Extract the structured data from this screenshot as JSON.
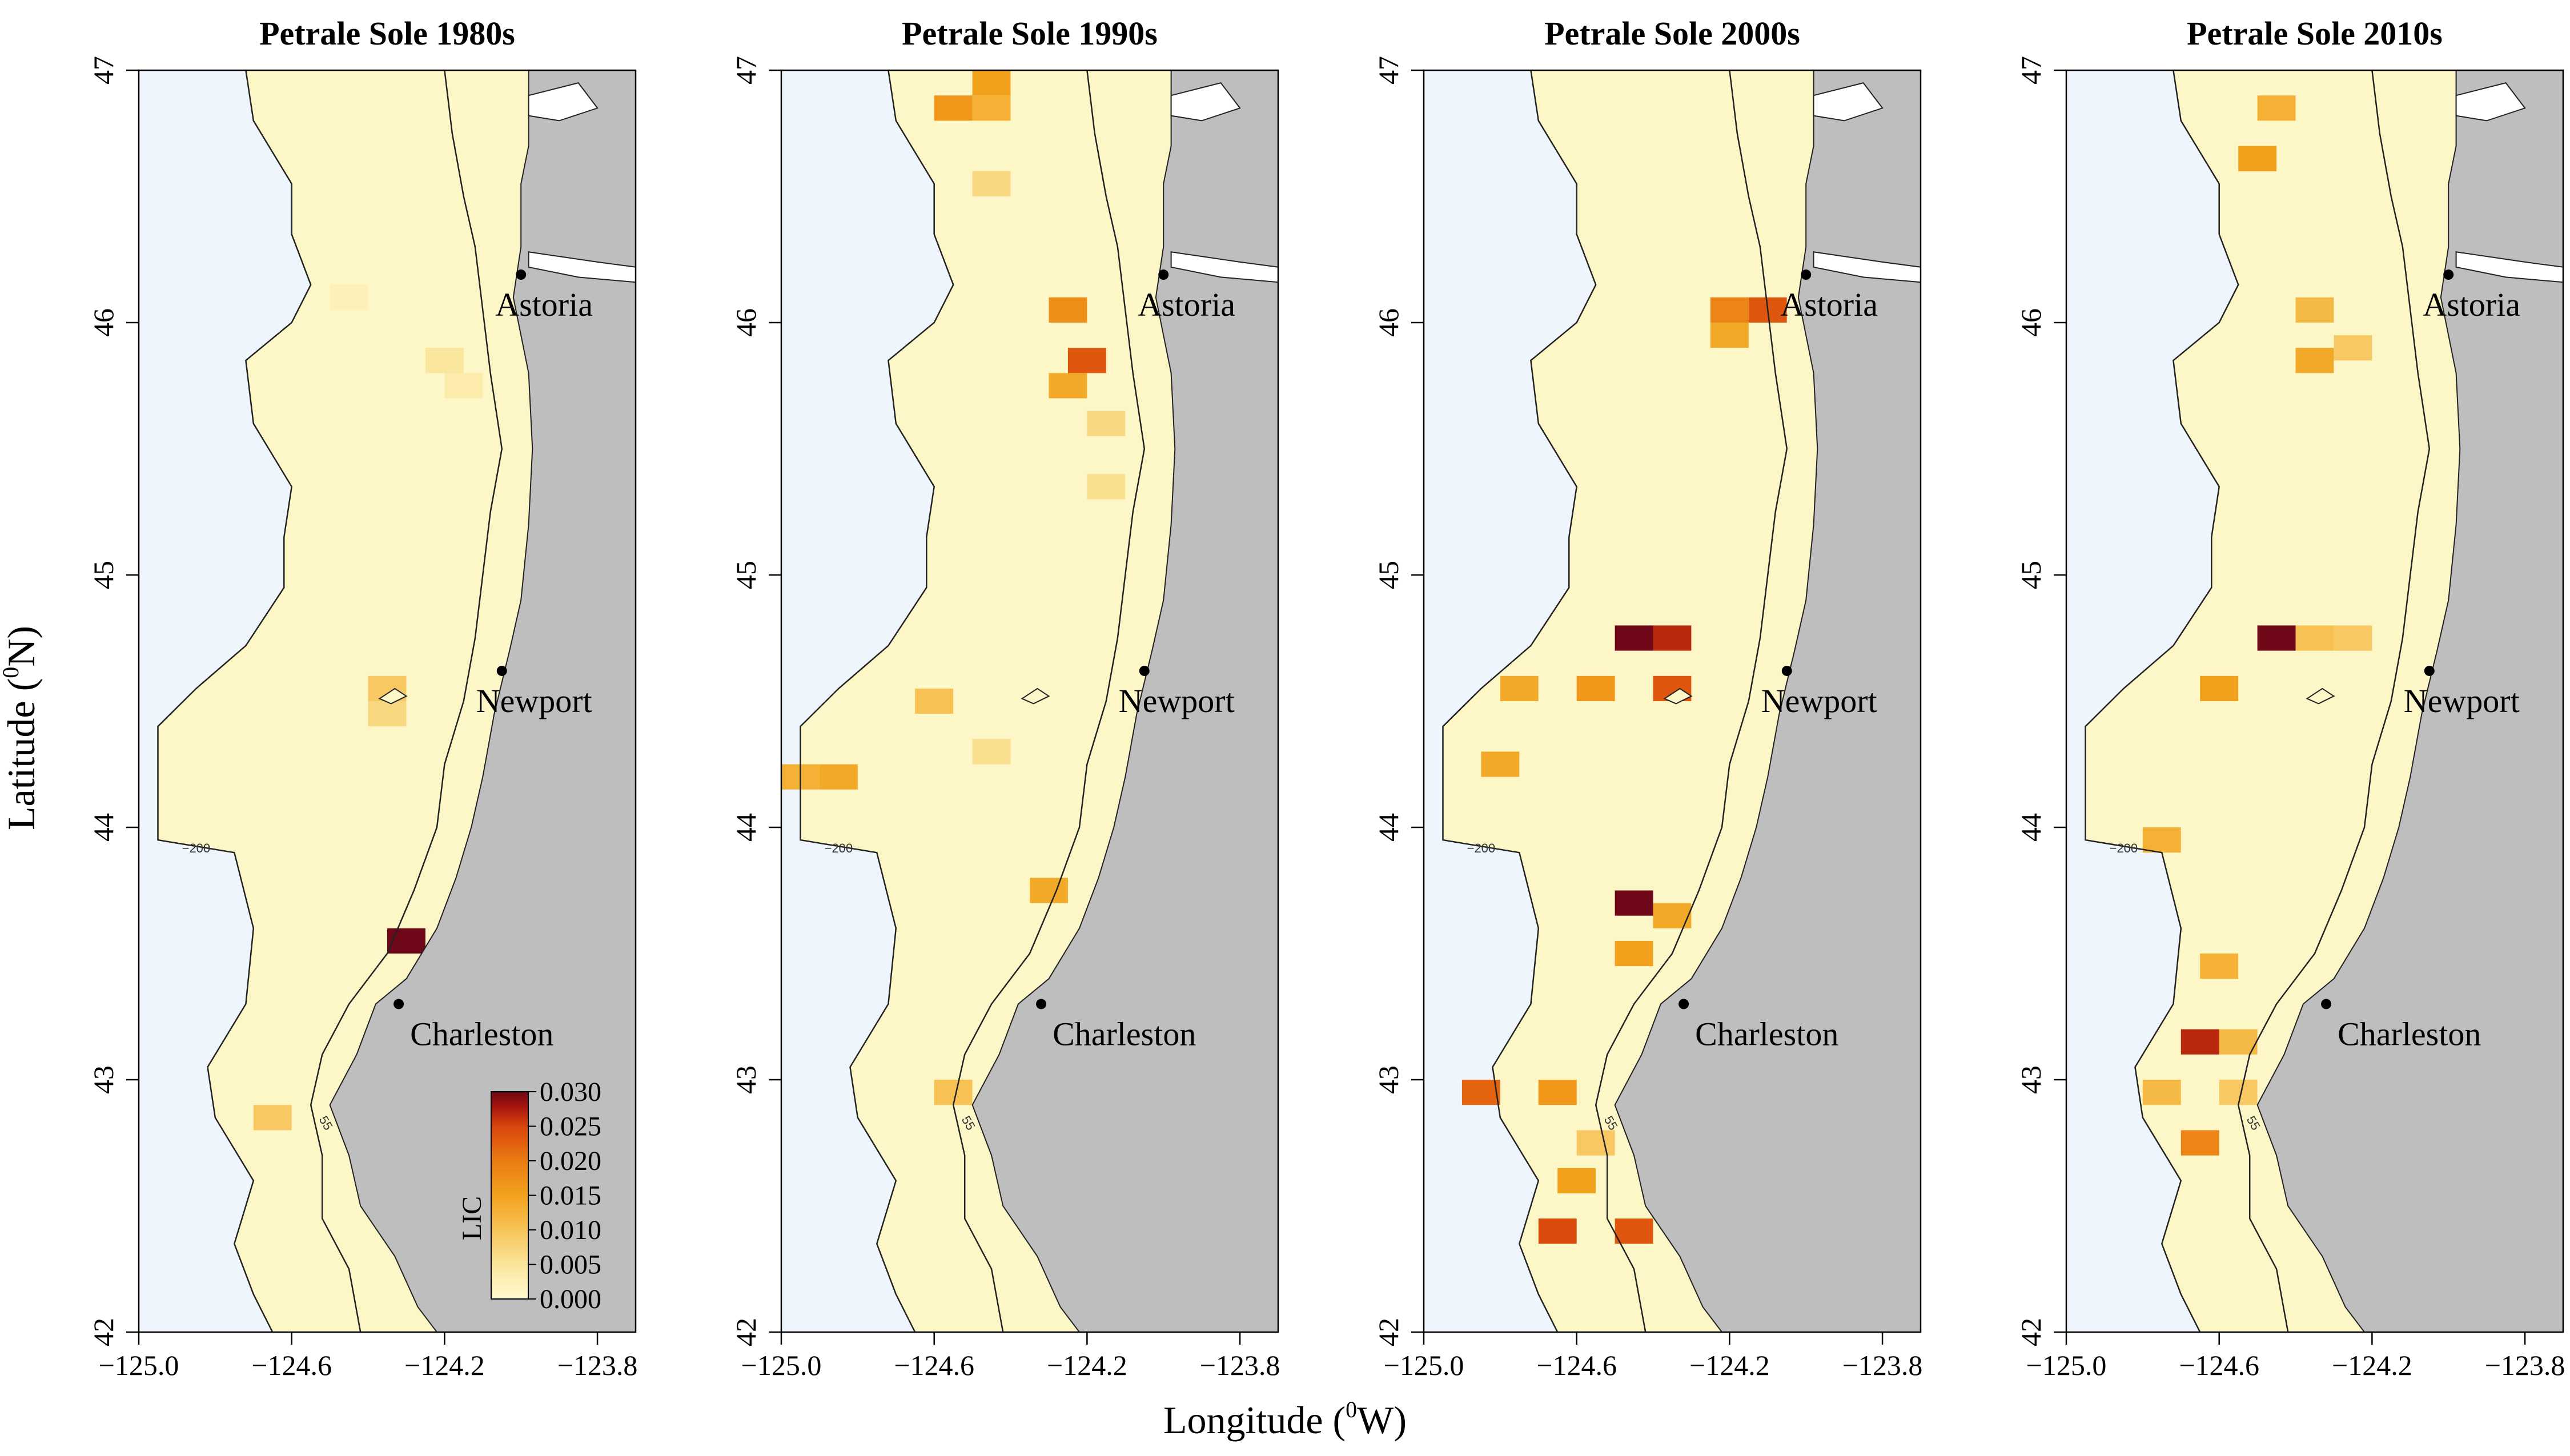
{
  "figure": {
    "xlabel_text": "Longitude (",
    "xlabel_sup": "0",
    "xlabel_end": "W)",
    "ylabel_text": "Latitude (",
    "ylabel_sup": "0",
    "ylabel_end": "N)"
  },
  "chart_data": {
    "type": "heatmap",
    "xlim": [
      -125.0,
      -123.7
    ],
    "ylim": [
      42,
      47
    ],
    "x_ticks": [
      "−125.0",
      "−124.6",
      "−124.2",
      "−123.8"
    ],
    "x_tick_values": [
      -125.0,
      -124.6,
      -124.2,
      -123.8
    ],
    "y_ticks": [
      "42",
      "43",
      "44",
      "45",
      "46",
      "47"
    ],
    "y_tick_values": [
      42,
      43,
      44,
      45,
      46,
      47
    ],
    "contour_labels": [
      "200",
      "55"
    ],
    "colors": {
      "ocean": "#eef5fc",
      "land": "#bebebe",
      "shelf": "#fdf7c7",
      "scale": [
        "#fffbd2",
        "#fbe49a",
        "#f7c459",
        "#f2a21c",
        "#ea7a12",
        "#d9460c",
        "#a5150e",
        "#6e0718"
      ]
    },
    "places": [
      {
        "name": "Astoria",
        "lon": -124.0,
        "lat": 46.19
      },
      {
        "name": "Newport",
        "lon": -124.05,
        "lat": 44.62
      },
      {
        "name": "Charleston",
        "lon": -124.32,
        "lat": 43.3
      }
    ],
    "legend": {
      "title": "LIC",
      "ticks": [
        "0.030",
        "0.025",
        "0.020",
        "0.015",
        "0.010",
        "0.005",
        "0.000"
      ],
      "tick_values": [
        0.03,
        0.025,
        0.02,
        0.015,
        0.01,
        0.005,
        0.0
      ],
      "range": [
        0.0,
        0.03
      ]
    },
    "panels": [
      {
        "title": "Petrale Sole 1980s",
        "cells": [
          [
            -124.3,
            43.55,
            0.03
          ],
          [
            -124.35,
            44.55,
            0.008
          ],
          [
            -124.65,
            42.85,
            0.008
          ],
          [
            -124.2,
            45.85,
            0.004
          ],
          [
            -124.15,
            45.75,
            0.003
          ],
          [
            -124.45,
            46.1,
            0.002
          ],
          [
            -124.35,
            44.45,
            0.006
          ]
        ]
      },
      {
        "title": "Petrale Sole 1990s",
        "cells": [
          [
            -124.55,
            46.85,
            0.014
          ],
          [
            -124.45,
            46.85,
            0.011
          ],
          [
            -124.45,
            46.95,
            0.013
          ],
          [
            -124.45,
            46.55,
            0.006
          ],
          [
            -124.25,
            46.05,
            0.015
          ],
          [
            -124.2,
            45.85,
            0.02
          ],
          [
            -124.25,
            45.75,
            0.012
          ],
          [
            -124.15,
            45.6,
            0.006
          ],
          [
            -124.15,
            45.35,
            0.005
          ],
          [
            -124.85,
            44.2,
            0.012
          ],
          [
            -124.95,
            44.2,
            0.011
          ],
          [
            -124.6,
            44.5,
            0.009
          ],
          [
            -124.45,
            44.3,
            0.005
          ],
          [
            -124.3,
            43.75,
            0.012
          ],
          [
            -124.55,
            42.95,
            0.009
          ]
        ]
      },
      {
        "title": "Petrale Sole 2000s",
        "cells": [
          [
            -124.2,
            46.05,
            0.016
          ],
          [
            -124.1,
            46.05,
            0.02
          ],
          [
            -124.2,
            45.95,
            0.012
          ],
          [
            -124.45,
            44.75,
            0.03
          ],
          [
            -124.35,
            44.75,
            0.024
          ],
          [
            -124.35,
            44.55,
            0.02
          ],
          [
            -124.55,
            44.55,
            0.014
          ],
          [
            -124.75,
            44.55,
            0.012
          ],
          [
            -124.8,
            44.25,
            0.012
          ],
          [
            -124.45,
            43.7,
            0.03
          ],
          [
            -124.35,
            43.65,
            0.012
          ],
          [
            -124.45,
            43.5,
            0.013
          ],
          [
            -124.85,
            42.95,
            0.019
          ],
          [
            -124.65,
            42.95,
            0.014
          ],
          [
            -124.6,
            42.6,
            0.013
          ],
          [
            -124.65,
            42.4,
            0.021
          ],
          [
            -124.45,
            42.4,
            0.02
          ],
          [
            -124.55,
            42.75,
            0.008
          ]
        ]
      },
      {
        "title": "Petrale Sole 2010s",
        "cells": [
          [
            -124.45,
            46.85,
            0.011
          ],
          [
            -124.5,
            46.65,
            0.013
          ],
          [
            -124.35,
            46.05,
            0.01
          ],
          [
            -124.35,
            45.85,
            0.012
          ],
          [
            -124.25,
            45.9,
            0.008
          ],
          [
            -124.45,
            44.75,
            0.03
          ],
          [
            -124.35,
            44.75,
            0.009
          ],
          [
            -124.25,
            44.75,
            0.008
          ],
          [
            -124.6,
            44.55,
            0.013
          ],
          [
            -124.75,
            43.95,
            0.011
          ],
          [
            -124.6,
            43.45,
            0.011
          ],
          [
            -124.65,
            43.15,
            0.024
          ],
          [
            -124.55,
            43.15,
            0.01
          ],
          [
            -124.75,
            42.95,
            0.01
          ],
          [
            -124.65,
            42.75,
            0.016
          ],
          [
            -124.55,
            42.95,
            0.008
          ]
        ]
      }
    ]
  }
}
